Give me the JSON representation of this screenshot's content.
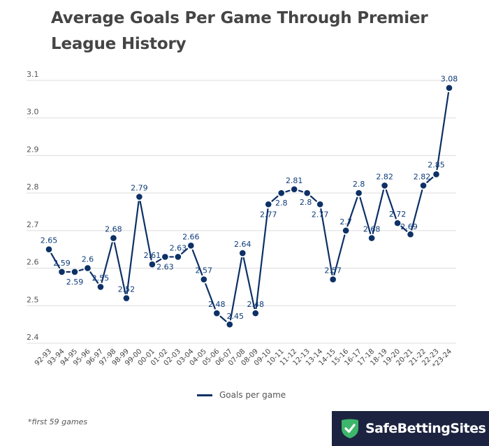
{
  "chart_data": {
    "type": "line",
    "title": "Average Goals Per Game Through Premier League History",
    "xlabel": "",
    "ylabel": "",
    "ylim": [
      2.4,
      3.1
    ],
    "yticks": [
      "2.4",
      "2.5",
      "2.6",
      "2.7",
      "2.8",
      "2.9",
      "3.0",
      "3.1"
    ],
    "grid": true,
    "legend_position": "bottom-center",
    "categories": [
      "92-93",
      "93-94",
      "94-95",
      "95-96",
      "96-97",
      "97-98",
      "98-99",
      "99-00",
      "00-01",
      "01-02",
      "02-03",
      "03-04",
      "04-05",
      "05-06",
      "06-07",
      "07-08",
      "08-09",
      "09-10",
      "10-11",
      "11-12",
      "12-13",
      "13-14",
      "14-15",
      "15-16",
      "16-17",
      "17-18",
      "18-19",
      "19-20",
      "20-21",
      "21-22",
      "22-23",
      "*23-24"
    ],
    "series": [
      {
        "name": "Goals per game",
        "color": "#0d3066",
        "values": [
          2.65,
          2.59,
          2.59,
          2.6,
          2.55,
          2.68,
          2.52,
          2.79,
          2.61,
          2.63,
          2.63,
          2.66,
          2.57,
          2.48,
          2.45,
          2.64,
          2.48,
          2.77,
          2.8,
          2.81,
          2.8,
          2.77,
          2.57,
          2.7,
          2.8,
          2.68,
          2.82,
          2.72,
          2.69,
          2.82,
          2.85,
          3.08
        ],
        "labels": [
          "2.65",
          "2.59",
          "2.59",
          "2.6",
          "2.55",
          "2.68",
          "2.52",
          "2.79",
          "2.61",
          "2.63",
          "2.63",
          "2.66",
          "2.57",
          "2.48",
          "2.45",
          "2.64",
          "2.48",
          "2.77",
          "2.8",
          "2.81",
          "2.8",
          "2.77",
          "2.57",
          "2.7",
          "2.8",
          "2.68",
          "2.82",
          "2.72",
          "2.69",
          "2.82",
          "2.85",
          "3.08"
        ]
      }
    ]
  },
  "legend": {
    "label": "Goals per game"
  },
  "footnote": "*first 59 games",
  "brand": {
    "name": "SafeBettingSites",
    "shield_color": "#3db56a",
    "background": "#1c2340"
  }
}
